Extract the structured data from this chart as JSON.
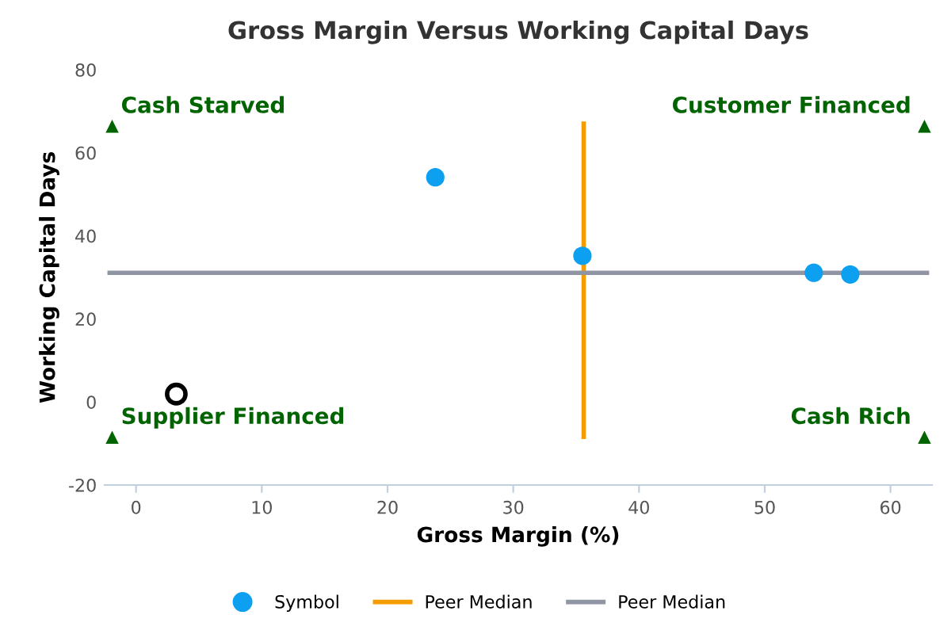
{
  "chart_data": {
    "type": "scatter",
    "title": "Gross Margin Versus Working Capital Days",
    "xlabel": "Gross Margin (%)",
    "ylabel": "Working Capital Days",
    "xlim": [
      -2.5,
      63.3
    ],
    "xticks": [
      0,
      10,
      20,
      30,
      40,
      50,
      60
    ],
    "ylim": [
      -20,
      80
    ],
    "yticks": [
      -20,
      0,
      20,
      40,
      60,
      80
    ],
    "grid": false,
    "legend": "bottom",
    "series": [
      {
        "name": "Symbol",
        "color": "#0ea0f0",
        "marker": "circle",
        "x": [
          23.8,
          35.5,
          53.9,
          56.8
        ],
        "values": [
          54.1,
          35.2,
          31.1,
          30.7
        ]
      },
      {
        "color": "#000000",
        "marker": "circle",
        "x": [
          3.2
        ],
        "values": [
          1.9
        ]
      },
      {
        "name": "Peer Median",
        "type": "line",
        "color": "#f59c00",
        "x": [
          35.6,
          35.6
        ],
        "values": [
          -8.4,
          67.0
        ]
      },
      {
        "name": "Peer Median",
        "type": "line",
        "color": "#8f95a3",
        "x": [
          -2.1,
          62.9
        ],
        "values": [
          31.1,
          31.1
        ]
      },
      {
        "color": "#006400",
        "marker": "triangle",
        "x": [
          -1.9,
          62.7,
          -1.9,
          62.7
        ],
        "values": [
          66.4,
          66.4,
          -8.5,
          -8.5
        ]
      }
    ],
    "annotations": [
      "Cash Starved",
      "Customer Financed",
      "Supplier Financed",
      "Cash Rich"
    ]
  }
}
